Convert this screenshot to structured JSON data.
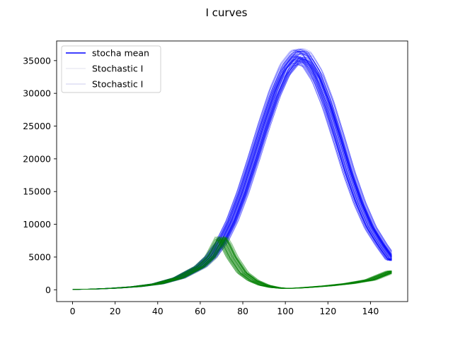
{
  "chart_data": {
    "type": "line",
    "title": "I curves",
    "xlabel": "",
    "ylabel": "",
    "xlim": [
      -7.5,
      157.5
    ],
    "ylim": [
      -1800,
      38000
    ],
    "xticks": [
      0,
      20,
      40,
      60,
      80,
      100,
      120,
      140
    ],
    "yticks": [
      0,
      5000,
      10000,
      15000,
      20000,
      25000,
      30000,
      35000
    ],
    "grid": false,
    "legend_position": "top-left",
    "legend": [
      {
        "label": "stocha mean",
        "color": "#0000ff",
        "style": "solid"
      },
      {
        "label": "Stochastic I",
        "color": "#e6e6f2",
        "style": "faint"
      },
      {
        "label": "Stochastic I",
        "color": "#d6d6f0",
        "style": "faint"
      }
    ],
    "series": [
      {
        "color": "#0000ff",
        "x": [
          0,
          10,
          20,
          30,
          40,
          50,
          60,
          65,
          70,
          75,
          80,
          85,
          90,
          95,
          100,
          105,
          107,
          110,
          115,
          120,
          125,
          130,
          135,
          140,
          145,
          150
        ],
        "y": [
          50,
          110,
          250,
          480,
          900,
          1800,
          3500,
          5000,
          7200,
          10500,
          14800,
          19800,
          25000,
          29800,
          33500,
          35500,
          35600,
          35200,
          32600,
          28400,
          23200,
          17800,
          13200,
          9500,
          6900,
          4600
        ]
      },
      {
        "color": "#008000",
        "x": [
          0,
          10,
          20,
          30,
          40,
          50,
          60,
          65,
          70,
          72,
          75,
          80,
          85,
          90,
          95,
          100,
          105,
          110,
          120,
          130,
          140,
          150
        ],
        "y": [
          50,
          110,
          250,
          480,
          900,
          1800,
          3500,
          5000,
          8000,
          7000,
          5000,
          2600,
          1400,
          700,
          350,
          200,
          250,
          350,
          600,
          950,
          1500,
          2800
        ]
      }
    ]
  }
}
